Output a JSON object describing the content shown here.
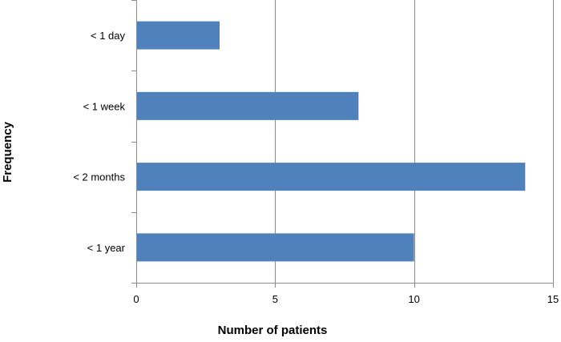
{
  "chart_data": {
    "type": "bar",
    "orientation": "horizontal",
    "categories": [
      "< 1 day",
      "< 1 week",
      "< 2 months",
      "< 1 year"
    ],
    "values": [
      3,
      8,
      14,
      10
    ],
    "title": "",
    "xlabel": "Number of patients",
    "ylabel": "Frequency",
    "xlim": [
      0,
      15
    ],
    "x_ticks": [
      0,
      5,
      10,
      15
    ],
    "x_tick_labels": [
      "0",
      "5",
      "10",
      "15"
    ],
    "grid": "vertical major gridlines",
    "legend": "none",
    "bar_color": "#4F81BD",
    "grid_color": "#8C8C8C",
    "axis_color": "#8C8C8C"
  }
}
